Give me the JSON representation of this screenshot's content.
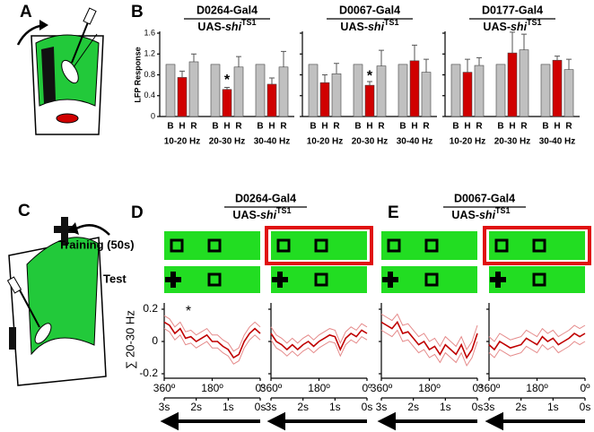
{
  "panel_labels": [
    "A",
    "B",
    "C",
    "D",
    "E"
  ],
  "panel_d": {
    "title": "D0264-Gal4",
    "subtitle": [
      "UAS-",
      "shi",
      "TS1"
    ]
  },
  "panel_e": {
    "title": "D0067-Gal4",
    "subtitle": [
      "UAS-",
      "shi",
      "TS1"
    ]
  },
  "rows": [
    "Training (50s)",
    "Test"
  ],
  "chart_data": [
    {
      "type": "bar",
      "title": "D0264-Gal4",
      "subtitle": [
        "UAS-",
        "shi",
        "TS1"
      ],
      "y_label": "LFP Response",
      "categories": [
        "10-20 Hz",
        "20-30 Hz",
        "30-40 Hz"
      ],
      "series": [
        {
          "name": "B",
          "color": "#c0c0c0",
          "values": [
            1.0,
            1.0,
            1.0
          ]
        },
        {
          "name": "H",
          "color": "#d00000",
          "values": [
            0.75,
            0.52,
            0.62
          ],
          "errors": [
            0.12,
            0.04,
            0.12
          ]
        },
        {
          "name": "R",
          "color": "#c0c0c0",
          "values": [
            1.05,
            0.95,
            0.95
          ],
          "errors": [
            0.15,
            0.2,
            0.3
          ]
        }
      ],
      "ylim": [
        0,
        1.6
      ],
      "yticks": [
        0,
        0.4,
        0.8,
        1.2,
        1.6
      ],
      "annotation": "*"
    },
    {
      "type": "bar",
      "title": "D0067-Gal4",
      "subtitle": [
        "UAS-",
        "shi",
        "TS1"
      ],
      "categories": [
        "10-20 Hz",
        "20-30 Hz",
        "30-40 Hz"
      ],
      "series": [
        {
          "name": "B",
          "color": "#c0c0c0",
          "values": [
            1.0,
            1.0,
            1.0
          ]
        },
        {
          "name": "H",
          "color": "#d00000",
          "values": [
            0.65,
            0.6,
            1.07
          ],
          "errors": [
            0.15,
            0.07,
            0.3
          ]
        },
        {
          "name": "R",
          "color": "#c0c0c0",
          "values": [
            0.82,
            0.97,
            0.85
          ],
          "errors": [
            0.2,
            0.3,
            0.25
          ]
        }
      ],
      "ylim": [
        0,
        1.6
      ],
      "yticks": [
        0,
        0.4,
        0.8,
        1.2,
        1.6
      ],
      "annotation": "*"
    },
    {
      "type": "bar",
      "title": "D0177-Gal4",
      "subtitle": [
        "UAS-",
        "shi",
        "TS1"
      ],
      "categories": [
        "10-20 Hz",
        "20-30 Hz",
        "30-40 Hz"
      ],
      "series": [
        {
          "name": "B",
          "color": "#c0c0c0",
          "values": [
            1.0,
            1.0,
            1.0
          ]
        },
        {
          "name": "H",
          "color": "#d00000",
          "values": [
            0.85,
            1.22,
            1.08
          ],
          "errors": [
            0.25,
            0.4,
            0.08
          ]
        },
        {
          "name": "R",
          "color": "#c0c0c0",
          "values": [
            0.98,
            1.28,
            0.9
          ],
          "errors": [
            0.15,
            0.3,
            0.2
          ]
        }
      ],
      "ylim": [
        0,
        1.6
      ],
      "yticks": [
        0,
        0.4,
        0.8,
        1.2,
        1.6
      ]
    },
    {
      "type": "line",
      "y_label": "∑ 20-30 Hz",
      "annotation": "*",
      "x": [
        360,
        340,
        320,
        300,
        280,
        260,
        240,
        220,
        200,
        180,
        160,
        140,
        120,
        100,
        80,
        60,
        40,
        20,
        0
      ],
      "xlim": [
        360,
        0
      ],
      "xticks": [
        {
          "value": 360,
          "label": "360º"
        },
        {
          "value": 180,
          "label": "180º"
        },
        {
          "value": 0,
          "label": "0º"
        }
      ],
      "x2lim": [
        3,
        0
      ],
      "x2ticks": [
        {
          "value": 3,
          "label": "3s"
        },
        {
          "value": 2,
          "label": "2s"
        },
        {
          "value": 1,
          "label": "1s"
        },
        {
          "value": 0,
          "label": "0s"
        }
      ],
      "ylim": [
        -0.2,
        0.2
      ],
      "yticks": [
        -0.2,
        0,
        0.2
      ],
      "series": [
        {
          "color": "#e58a8a",
          "values": [
            0.16,
            0.14,
            0.09,
            0.12,
            0.06,
            0.07,
            0.04,
            0.06,
            0.08,
            0.04,
            0.04,
            0.01,
            -0.01,
            -0.06,
            -0.04,
            0.04,
            0.09,
            0.12,
            0.09
          ]
        },
        {
          "color": "#e58a8a",
          "values": [
            0.08,
            0.06,
            0.01,
            0.04,
            -0.02,
            -0.01,
            -0.04,
            -0.02,
            0.0,
            -0.04,
            -0.04,
            -0.07,
            -0.09,
            -0.14,
            -0.12,
            -0.04,
            0.01,
            0.04,
            0.01
          ]
        },
        {
          "color": "#c00000",
          "values": [
            0.12,
            0.1,
            0.05,
            0.08,
            0.02,
            0.03,
            0.0,
            0.02,
            0.04,
            0.0,
            0.0,
            -0.03,
            -0.05,
            -0.1,
            -0.08,
            0.0,
            0.05,
            0.08,
            0.05
          ]
        }
      ]
    },
    {
      "type": "line",
      "x": [
        360,
        340,
        320,
        300,
        280,
        260,
        240,
        220,
        200,
        180,
        160,
        140,
        120,
        100,
        80,
        60,
        40,
        20,
        0
      ],
      "xlim": [
        360,
        0
      ],
      "xticks": [
        {
          "value": 360,
          "label": "360º"
        },
        {
          "value": 180,
          "label": "180º"
        },
        {
          "value": 0,
          "label": "0º"
        }
      ],
      "x2lim": [
        3,
        0
      ],
      "x2ticks": [
        {
          "value": 3,
          "label": "3s"
        },
        {
          "value": 2,
          "label": "2s"
        },
        {
          "value": 1,
          "label": "1s"
        },
        {
          "value": 0,
          "label": "0s"
        }
      ],
      "ylim": [
        -0.2,
        0.2
      ],
      "yticks": [
        -0.2,
        0,
        0.2
      ],
      "series": [
        {
          "color": "#e58a8a",
          "values": [
            0.09,
            0.04,
            0.02,
            -0.01,
            0.02,
            -0.01,
            0.02,
            0.04,
            0.01,
            0.04,
            0.06,
            0.08,
            0.07,
            -0.01,
            0.06,
            0.09,
            0.07,
            0.11,
            0.09
          ]
        },
        {
          "color": "#e58a8a",
          "values": [
            0.01,
            -0.04,
            -0.06,
            -0.09,
            -0.06,
            -0.09,
            -0.06,
            -0.04,
            -0.07,
            -0.04,
            -0.02,
            0.0,
            -0.01,
            -0.09,
            -0.02,
            0.01,
            -0.01,
            0.03,
            0.01
          ]
        },
        {
          "color": "#c00000",
          "values": [
            0.05,
            0.0,
            -0.02,
            -0.05,
            -0.02,
            -0.05,
            -0.02,
            0.0,
            -0.03,
            0.0,
            0.02,
            0.04,
            0.03,
            -0.05,
            0.02,
            0.05,
            0.03,
            0.07,
            0.05
          ]
        }
      ]
    },
    {
      "type": "line",
      "x": [
        360,
        340,
        320,
        300,
        280,
        260,
        240,
        220,
        200,
        180,
        160,
        140,
        120,
        100,
        80,
        60,
        40,
        20,
        0
      ],
      "xlim": [
        360,
        0
      ],
      "xticks": [
        {
          "value": 360,
          "label": "360º"
        },
        {
          "value": 180,
          "label": "180º"
        },
        {
          "value": 0,
          "label": "0º"
        }
      ],
      "x2lim": [
        3,
        0
      ],
      "x2ticks": [
        {
          "value": 3,
          "label": "3s"
        },
        {
          "value": 2,
          "label": "2s"
        },
        {
          "value": 1,
          "label": "1s"
        },
        {
          "value": 0,
          "label": "0s"
        }
      ],
      "ylim": [
        -0.2,
        0.2
      ],
      "yticks": [
        -0.2,
        0,
        0.2
      ],
      "series": [
        {
          "color": "#e58a8a",
          "values": [
            0.17,
            0.15,
            0.13,
            0.17,
            0.1,
            0.11,
            0.07,
            0.03,
            0.05,
            0.0,
            0.02,
            -0.03,
            0.03,
            0.0,
            -0.03,
            0.03,
            -0.05,
            0.0,
            0.1
          ]
        },
        {
          "color": "#e58a8a",
          "values": [
            0.07,
            0.05,
            0.03,
            0.07,
            0.0,
            0.01,
            -0.03,
            -0.07,
            -0.05,
            -0.1,
            -0.08,
            -0.13,
            -0.07,
            -0.1,
            -0.13,
            -0.07,
            -0.15,
            -0.1,
            0.0
          ]
        },
        {
          "color": "#c00000",
          "values": [
            0.12,
            0.1,
            0.08,
            0.12,
            0.05,
            0.06,
            0.02,
            -0.02,
            0.0,
            -0.05,
            -0.03,
            -0.08,
            -0.02,
            -0.05,
            -0.08,
            -0.02,
            -0.1,
            -0.05,
            0.05
          ]
        }
      ]
    },
    {
      "type": "line",
      "x": [
        360,
        340,
        320,
        300,
        280,
        260,
        240,
        220,
        200,
        180,
        160,
        140,
        120,
        100,
        80,
        60,
        40,
        20,
        0
      ],
      "xlim": [
        360,
        0
      ],
      "xticks": [
        {
          "value": 360,
          "label": "360º"
        },
        {
          "value": 180,
          "label": "180º"
        },
        {
          "value": 0,
          "label": "0º"
        }
      ],
      "x2lim": [
        3,
        0
      ],
      "x2ticks": [
        {
          "value": 3,
          "label": "3s"
        },
        {
          "value": 2,
          "label": "2s"
        },
        {
          "value": 1,
          "label": "1s"
        },
        {
          "value": 0,
          "label": "0s"
        }
      ],
      "ylim": [
        -0.2,
        0.2
      ],
      "yticks": [
        -0.2,
        0,
        0.2
      ],
      "series": [
        {
          "color": "#e58a8a",
          "values": [
            0.03,
            0.0,
            0.05,
            0.03,
            0.01,
            0.02,
            0.03,
            0.07,
            0.05,
            0.03,
            0.08,
            0.05,
            0.07,
            0.03,
            0.05,
            0.07,
            0.1,
            0.08,
            0.1
          ]
        },
        {
          "color": "#e58a8a",
          "values": [
            -0.07,
            -0.1,
            -0.05,
            -0.07,
            -0.09,
            -0.08,
            -0.07,
            -0.03,
            -0.05,
            -0.07,
            -0.02,
            -0.05,
            -0.03,
            -0.07,
            -0.05,
            -0.03,
            0.0,
            -0.02,
            0.0
          ]
        },
        {
          "color": "#c00000",
          "values": [
            -0.02,
            -0.05,
            0.0,
            -0.02,
            -0.04,
            -0.03,
            -0.02,
            0.02,
            0.0,
            -0.02,
            0.03,
            0.0,
            0.02,
            -0.02,
            0.0,
            0.02,
            0.05,
            0.03,
            0.05
          ]
        }
      ]
    }
  ]
}
